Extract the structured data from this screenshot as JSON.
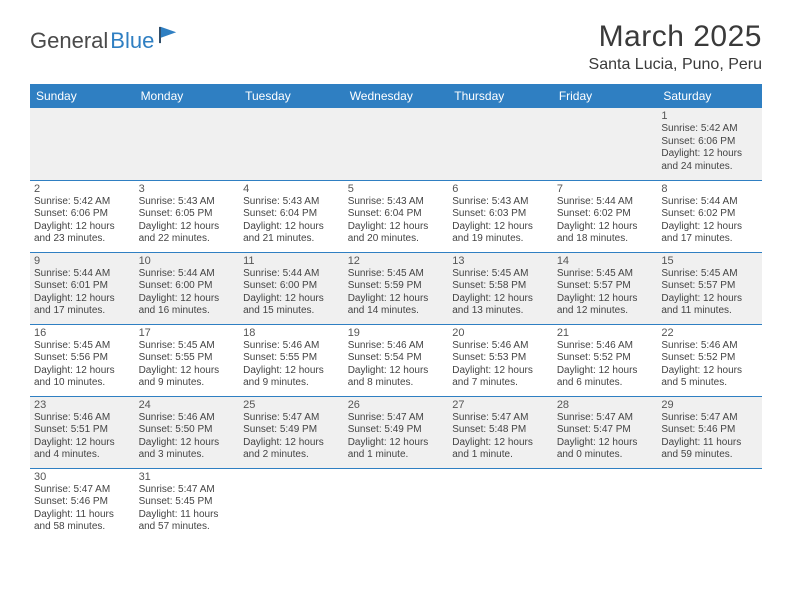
{
  "logo": {
    "text1": "General",
    "text2": "Blue"
  },
  "title": "March 2025",
  "location": "Santa Lucia, Puno, Peru",
  "colors": {
    "header_bg": "#2f7fc2",
    "header_text": "#ffffff",
    "row_alt_bg": "#f0f0f0",
    "row_bg": "#ffffff",
    "border": "#2f7fc2",
    "title_color": "#3a3a3a",
    "text_color": "#444444"
  },
  "columns": [
    "Sunday",
    "Monday",
    "Tuesday",
    "Wednesday",
    "Thursday",
    "Friday",
    "Saturday"
  ],
  "weeks": [
    [
      null,
      null,
      null,
      null,
      null,
      null,
      {
        "n": "1",
        "sr": "5:42 AM",
        "ss": "6:06 PM",
        "dl": "12 hours and 24 minutes."
      }
    ],
    [
      {
        "n": "2",
        "sr": "5:42 AM",
        "ss": "6:06 PM",
        "dl": "12 hours and 23 minutes."
      },
      {
        "n": "3",
        "sr": "5:43 AM",
        "ss": "6:05 PM",
        "dl": "12 hours and 22 minutes."
      },
      {
        "n": "4",
        "sr": "5:43 AM",
        "ss": "6:04 PM",
        "dl": "12 hours and 21 minutes."
      },
      {
        "n": "5",
        "sr": "5:43 AM",
        "ss": "6:04 PM",
        "dl": "12 hours and 20 minutes."
      },
      {
        "n": "6",
        "sr": "5:43 AM",
        "ss": "6:03 PM",
        "dl": "12 hours and 19 minutes."
      },
      {
        "n": "7",
        "sr": "5:44 AM",
        "ss": "6:02 PM",
        "dl": "12 hours and 18 minutes."
      },
      {
        "n": "8",
        "sr": "5:44 AM",
        "ss": "6:02 PM",
        "dl": "12 hours and 17 minutes."
      }
    ],
    [
      {
        "n": "9",
        "sr": "5:44 AM",
        "ss": "6:01 PM",
        "dl": "12 hours and 17 minutes."
      },
      {
        "n": "10",
        "sr": "5:44 AM",
        "ss": "6:00 PM",
        "dl": "12 hours and 16 minutes."
      },
      {
        "n": "11",
        "sr": "5:44 AM",
        "ss": "6:00 PM",
        "dl": "12 hours and 15 minutes."
      },
      {
        "n": "12",
        "sr": "5:45 AM",
        "ss": "5:59 PM",
        "dl": "12 hours and 14 minutes."
      },
      {
        "n": "13",
        "sr": "5:45 AM",
        "ss": "5:58 PM",
        "dl": "12 hours and 13 minutes."
      },
      {
        "n": "14",
        "sr": "5:45 AM",
        "ss": "5:57 PM",
        "dl": "12 hours and 12 minutes."
      },
      {
        "n": "15",
        "sr": "5:45 AM",
        "ss": "5:57 PM",
        "dl": "12 hours and 11 minutes."
      }
    ],
    [
      {
        "n": "16",
        "sr": "5:45 AM",
        "ss": "5:56 PM",
        "dl": "12 hours and 10 minutes."
      },
      {
        "n": "17",
        "sr": "5:45 AM",
        "ss": "5:55 PM",
        "dl": "12 hours and 9 minutes."
      },
      {
        "n": "18",
        "sr": "5:46 AM",
        "ss": "5:55 PM",
        "dl": "12 hours and 9 minutes."
      },
      {
        "n": "19",
        "sr": "5:46 AM",
        "ss": "5:54 PM",
        "dl": "12 hours and 8 minutes."
      },
      {
        "n": "20",
        "sr": "5:46 AM",
        "ss": "5:53 PM",
        "dl": "12 hours and 7 minutes."
      },
      {
        "n": "21",
        "sr": "5:46 AM",
        "ss": "5:52 PM",
        "dl": "12 hours and 6 minutes."
      },
      {
        "n": "22",
        "sr": "5:46 AM",
        "ss": "5:52 PM",
        "dl": "12 hours and 5 minutes."
      }
    ],
    [
      {
        "n": "23",
        "sr": "5:46 AM",
        "ss": "5:51 PM",
        "dl": "12 hours and 4 minutes."
      },
      {
        "n": "24",
        "sr": "5:46 AM",
        "ss": "5:50 PM",
        "dl": "12 hours and 3 minutes."
      },
      {
        "n": "25",
        "sr": "5:47 AM",
        "ss": "5:49 PM",
        "dl": "12 hours and 2 minutes."
      },
      {
        "n": "26",
        "sr": "5:47 AM",
        "ss": "5:49 PM",
        "dl": "12 hours and 1 minute."
      },
      {
        "n": "27",
        "sr": "5:47 AM",
        "ss": "5:48 PM",
        "dl": "12 hours and 1 minute."
      },
      {
        "n": "28",
        "sr": "5:47 AM",
        "ss": "5:47 PM",
        "dl": "12 hours and 0 minutes."
      },
      {
        "n": "29",
        "sr": "5:47 AM",
        "ss": "5:46 PM",
        "dl": "11 hours and 59 minutes."
      }
    ],
    [
      {
        "n": "30",
        "sr": "5:47 AM",
        "ss": "5:46 PM",
        "dl": "11 hours and 58 minutes."
      },
      {
        "n": "31",
        "sr": "5:47 AM",
        "ss": "5:45 PM",
        "dl": "11 hours and 57 minutes."
      },
      null,
      null,
      null,
      null,
      null
    ]
  ],
  "labels": {
    "sunrise": "Sunrise:",
    "sunset": "Sunset:",
    "daylight": "Daylight:"
  }
}
